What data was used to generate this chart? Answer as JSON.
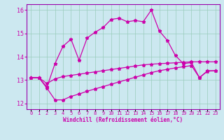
{
  "xlabel": "Windchill (Refroidissement éolien,°C)",
  "background_color": "#cce8f0",
  "grid_color": "#99ccbb",
  "line_color": "#cc00aa",
  "spine_color": "#9900aa",
  "xlim": [
    -0.5,
    23.5
  ],
  "ylim": [
    11.75,
    16.25
  ],
  "yticks": [
    12,
    13,
    14,
    15,
    16
  ],
  "xticks": [
    0,
    1,
    2,
    3,
    4,
    5,
    6,
    7,
    8,
    9,
    10,
    11,
    12,
    13,
    14,
    15,
    16,
    17,
    18,
    19,
    20,
    21,
    22,
    23
  ],
  "top_line": [
    13.1,
    13.1,
    12.7,
    13.7,
    14.45,
    14.75,
    13.85,
    14.8,
    15.05,
    15.25,
    15.6,
    15.65,
    15.5,
    15.55,
    15.5,
    16.0,
    15.1,
    14.7,
    14.05,
    13.7,
    13.75,
    13.1,
    13.4,
    13.4
  ],
  "mid_line": [
    13.1,
    13.1,
    12.85,
    13.05,
    13.15,
    13.2,
    13.25,
    13.3,
    13.35,
    13.4,
    13.45,
    13.5,
    13.55,
    13.6,
    13.65,
    13.68,
    13.7,
    13.72,
    13.74,
    13.76,
    13.78,
    13.78,
    13.78,
    13.78
  ],
  "bot_line": [
    13.1,
    13.1,
    12.65,
    12.15,
    12.15,
    12.3,
    12.4,
    12.52,
    12.62,
    12.72,
    12.82,
    12.92,
    13.02,
    13.12,
    13.22,
    13.32,
    13.4,
    13.46,
    13.52,
    13.57,
    13.62,
    13.1,
    13.38,
    13.4
  ]
}
